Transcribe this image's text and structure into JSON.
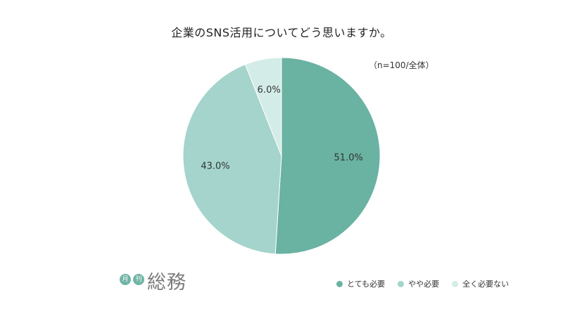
{
  "chart_data": {
    "type": "pie",
    "title": "企業のSNS活用についてどう思いますか。",
    "note": "（n=100/全体）",
    "slices": [
      {
        "label": "とても必要",
        "value": 51.0,
        "display": "51.0%",
        "color": "#6ab2a2"
      },
      {
        "label": "やや必要",
        "value": 43.0,
        "display": "43.0%",
        "color": "#a4d4cb"
      },
      {
        "label": "全く必要ない",
        "value": 6.0,
        "display": "6.0%",
        "color": "#d3ece7"
      }
    ],
    "start_angle": "top (12 o'clock)",
    "direction": "clockwise",
    "legend_position": "bottom-right"
  },
  "brand": {
    "badges": [
      "月",
      "刊"
    ],
    "name": "総務"
  }
}
